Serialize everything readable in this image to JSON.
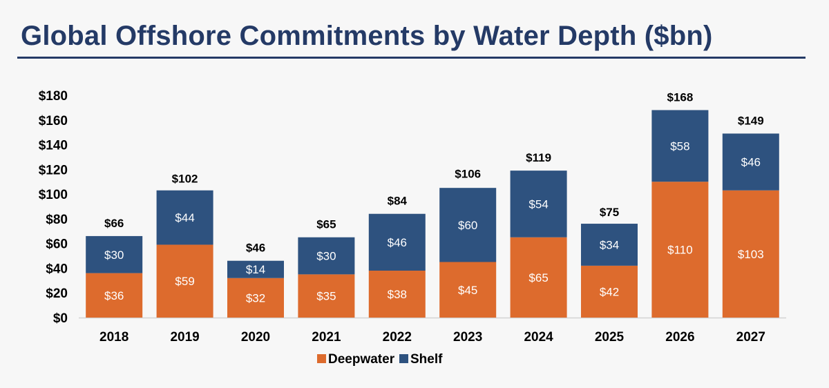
{
  "chart_data": {
    "type": "bar",
    "stacked": true,
    "title": "Global Offshore Commitments by Water Depth ($bn)",
    "xlabel": "",
    "ylabel": "",
    "categories": [
      "2018",
      "2019",
      "2020",
      "2021",
      "2022",
      "2023",
      "2024",
      "2025",
      "2026",
      "2027"
    ],
    "series": [
      {
        "name": "Deepwater",
        "color": "#dd6b2d",
        "values": [
          36,
          59,
          32,
          35,
          38,
          45,
          65,
          42,
          110,
          103
        ]
      },
      {
        "name": "Shelf",
        "color": "#2e527f",
        "values": [
          30,
          44,
          14,
          30,
          46,
          60,
          54,
          34,
          58,
          46
        ]
      }
    ],
    "segment_labels": {
      "Deepwater": [
        "$36",
        "$59",
        "$32",
        "$35",
        "$38",
        "$45",
        "$65",
        "$42",
        "$110",
        "$103"
      ],
      "Shelf": [
        "$30",
        "$44",
        "$14",
        "$30",
        "$46",
        "$60",
        "$54",
        "$34",
        "$58",
        "$46"
      ]
    },
    "totals": [
      66,
      102,
      46,
      65,
      84,
      106,
      119,
      75,
      168,
      149
    ],
    "total_labels": [
      "$66",
      "$102",
      "$46",
      "$65",
      "$84",
      "$106",
      "$119",
      "$75",
      "$168",
      "$149"
    ],
    "ylim": [
      0,
      180
    ],
    "yticks": [
      0,
      20,
      40,
      60,
      80,
      100,
      120,
      140,
      160,
      180
    ],
    "ytick_labels": [
      "$0",
      "$20",
      "$40",
      "$60",
      "$80",
      "$100",
      "$120",
      "$140",
      "$160",
      "$180"
    ],
    "grid": false,
    "legend": "bottom-center"
  }
}
